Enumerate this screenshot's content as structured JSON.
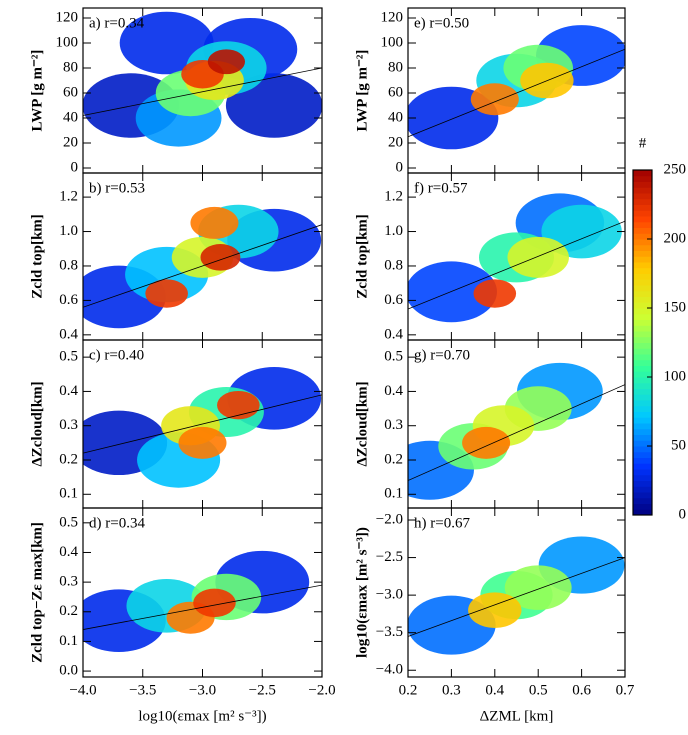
{
  "chart_data": [
    {
      "type": "density",
      "label": "a) r=0.34",
      "ylabel": "LWP [g m⁻²]",
      "xlim": [
        -4,
        -2
      ],
      "ylim": [
        -4,
        128
      ],
      "xticks": [
        {
          "value": -4,
          "label": "−4.0"
        },
        {
          "value": -3.5,
          "label": "−3.5"
        },
        {
          "value": -3,
          "label": "−3.0"
        },
        {
          "value": -2.5,
          "label": "−2.5"
        },
        {
          "value": -2,
          "label": "−2.0"
        }
      ],
      "yticks": [
        0,
        20,
        40,
        60,
        80,
        100,
        120
      ],
      "density": {
        "x": [
          -3.6,
          -2.4,
          -3.3,
          -2.6,
          -3.2,
          -2.8,
          -3.1,
          -2.9,
          -3.0,
          -2.8
        ],
        "y": [
          50,
          50,
          100,
          95,
          40,
          80,
          60,
          70,
          75,
          85
        ],
        "values": [
          20,
          20,
          30,
          30,
          60,
          80,
          120,
          160,
          220,
          240
        ]
      },
      "fit": {
        "x": [
          -4,
          -2
        ],
        "y": [
          42,
          80
        ]
      }
    },
    {
      "type": "density",
      "label": "b) r=0.53",
      "ylabel": "Zcld top[km]",
      "xlim": [
        -4,
        -2
      ],
      "ylim": [
        0.37,
        1.34
      ],
      "xticks": [
        {
          "value": -4,
          "label": "−4.0"
        },
        {
          "value": -3.5,
          "label": "−3.5"
        },
        {
          "value": -3,
          "label": "−3.0"
        },
        {
          "value": -2.5,
          "label": "−2.5"
        },
        {
          "value": -2,
          "label": "−2.0"
        }
      ],
      "yticks": [
        0.4,
        0.6,
        0.8,
        {
          "value": 1,
          "label": "1.0"
        },
        1.2
      ],
      "density": {
        "x": [
          -3.7,
          -2.4,
          -3.3,
          -2.7,
          -3.0,
          -2.9,
          -3.3,
          -2.85
        ],
        "y": [
          0.62,
          0.95,
          0.75,
          1.0,
          0.85,
          1.05,
          0.64,
          0.85
        ],
        "values": [
          30,
          30,
          70,
          80,
          150,
          200,
          220,
          230
        ]
      },
      "fit": {
        "x": [
          -4,
          -2
        ],
        "y": [
          0.56,
          1.04
        ]
      }
    },
    {
      "type": "density",
      "label": "c) r=0.40",
      "ylabel": "ΔZcloud[km]",
      "xlim": [
        -4,
        -2
      ],
      "ylim": [
        0.06,
        0.55
      ],
      "xticks": [
        {
          "value": -4,
          "label": "−4.0"
        },
        {
          "value": -3.5,
          "label": "−3.5"
        },
        {
          "value": -3,
          "label": "−3.0"
        },
        {
          "value": -2.5,
          "label": "−2.5"
        },
        {
          "value": -2,
          "label": "−2.0"
        }
      ],
      "yticks": [
        0.1,
        0.2,
        0.3,
        0.4,
        0.5
      ],
      "density": {
        "x": [
          -3.7,
          -2.4,
          -3.2,
          -2.8,
          -3.1,
          -3.0,
          -2.7
        ],
        "y": [
          0.25,
          0.38,
          0.2,
          0.34,
          0.3,
          0.25,
          0.36
        ],
        "values": [
          20,
          30,
          70,
          100,
          160,
          200,
          220
        ]
      },
      "fit": {
        "x": [
          -4,
          -2
        ],
        "y": [
          0.22,
          0.39
        ]
      }
    },
    {
      "type": "density",
      "label": "d) r=0.34",
      "ylabel": "Zcld top−Zε max[km]",
      "xlabel": "log10(εmax [m² s⁻³])",
      "xlim": [
        -4,
        -2
      ],
      "ylim": [
        -0.02,
        0.55
      ],
      "xticks": [
        {
          "value": -4,
          "label": "−4.0"
        },
        {
          "value": -3.5,
          "label": "−3.5"
        },
        {
          "value": -3,
          "label": "−3.0"
        },
        {
          "value": -2.5,
          "label": "−2.5"
        },
        {
          "value": -2,
          "label": "−2.0"
        }
      ],
      "yticks": [
        {
          "value": 0,
          "label": "0.0"
        },
        0.1,
        0.2,
        0.3,
        0.4,
        0.5
      ],
      "density": {
        "x": [
          -3.7,
          -2.5,
          -3.3,
          -2.8,
          -3.1,
          -2.9
        ],
        "y": [
          0.17,
          0.3,
          0.22,
          0.25,
          0.18,
          0.23
        ],
        "values": [
          30,
          30,
          80,
          120,
          200,
          220
        ]
      },
      "fit": {
        "x": [
          -4,
          -2
        ],
        "y": [
          0.14,
          0.29
        ]
      }
    },
    {
      "type": "density",
      "label": "e) r=0.50",
      "ylabel": "LWP [g m⁻²]",
      "xlim": [
        0.2,
        0.7
      ],
      "ylim": [
        -4,
        128
      ],
      "xticks": [
        0.2,
        0.3,
        0.4,
        0.5,
        0.6,
        0.7
      ],
      "yticks": [
        0,
        20,
        40,
        60,
        80,
        100,
        120
      ],
      "density": {
        "x": [
          0.3,
          0.6,
          0.45,
          0.5,
          0.52,
          0.4
        ],
        "y": [
          40,
          90,
          70,
          80,
          70,
          55
        ],
        "values": [
          30,
          40,
          80,
          120,
          180,
          200
        ]
      },
      "fit": {
        "x": [
          0.2,
          0.7
        ],
        "y": [
          25,
          95
        ]
      }
    },
    {
      "type": "density",
      "label": "f) r=0.57",
      "ylabel": "Zcld top[km]",
      "xlim": [
        0.2,
        0.7
      ],
      "ylim": [
        0.37,
        1.34
      ],
      "xticks": [
        0.2,
        0.3,
        0.4,
        0.5,
        0.6,
        0.7
      ],
      "yticks": [
        0.4,
        0.6,
        0.8,
        {
          "value": 1,
          "label": "1.0"
        },
        1.2
      ],
      "density": {
        "x": [
          0.3,
          0.55,
          0.6,
          0.45,
          0.5,
          0.4
        ],
        "y": [
          0.65,
          1.05,
          1.0,
          0.85,
          0.85,
          0.64
        ],
        "values": [
          40,
          50,
          80,
          100,
          150,
          220
        ]
      },
      "fit": {
        "x": [
          0.2,
          0.7
        ],
        "y": [
          0.55,
          1.06
        ]
      }
    },
    {
      "type": "density",
      "label": "g) r=0.70",
      "ylabel": "ΔZcloud[km]",
      "xlim": [
        0.2,
        0.7
      ],
      "ylim": [
        0.06,
        0.55
      ],
      "xticks": [
        0.2,
        0.3,
        0.4,
        0.5,
        0.6,
        0.7
      ],
      "yticks": [
        0.1,
        0.2,
        0.3,
        0.4,
        0.5
      ],
      "density": {
        "x": [
          0.25,
          0.55,
          0.35,
          0.5,
          0.42,
          0.38
        ],
        "y": [
          0.17,
          0.4,
          0.24,
          0.35,
          0.3,
          0.25
        ],
        "values": [
          50,
          60,
          120,
          130,
          150,
          200
        ]
      },
      "fit": {
        "x": [
          0.2,
          0.7
        ],
        "y": [
          0.14,
          0.42
        ]
      }
    },
    {
      "type": "density",
      "label": "h) r=0.67",
      "ylabel": "log10(εmax [m² s⁻³])",
      "xlabel": "ΔZML [km]",
      "xlim": [
        0.2,
        0.7
      ],
      "ylim": [
        -4.09,
        -1.84
      ],
      "xticks": [
        0.2,
        0.3,
        0.4,
        0.5,
        0.6,
        0.7
      ],
      "yticks": [
        {
          "value": -4,
          "label": "−4.0"
        },
        {
          "value": -3.5,
          "label": "−3.5"
        },
        {
          "value": -3,
          "label": "−3.0"
        },
        {
          "value": -2.5,
          "label": "−2.5"
        },
        {
          "value": -2,
          "label": "−2.0"
        }
      ],
      "density": {
        "x": [
          0.3,
          0.6,
          0.45,
          0.5,
          0.4
        ],
        "y": [
          -3.4,
          -2.6,
          -3.0,
          -2.9,
          -3.2
        ],
        "values": [
          50,
          60,
          110,
          130,
          180
        ]
      },
      "fit": {
        "x": [
          0.2,
          0.7
        ],
        "y": [
          -3.55,
          -2.5
        ]
      }
    },
    {
      "type": "colorbar",
      "title": "#",
      "ylim": [
        0,
        250
      ],
      "yticks": [
        0,
        50,
        100,
        150,
        200,
        250
      ],
      "colors": [
        "#00007f",
        "#0033ff",
        "#00c8ff",
        "#33ff99",
        "#ccff33",
        "#ffcc00",
        "#ff4400",
        "#a00000"
      ]
    }
  ]
}
